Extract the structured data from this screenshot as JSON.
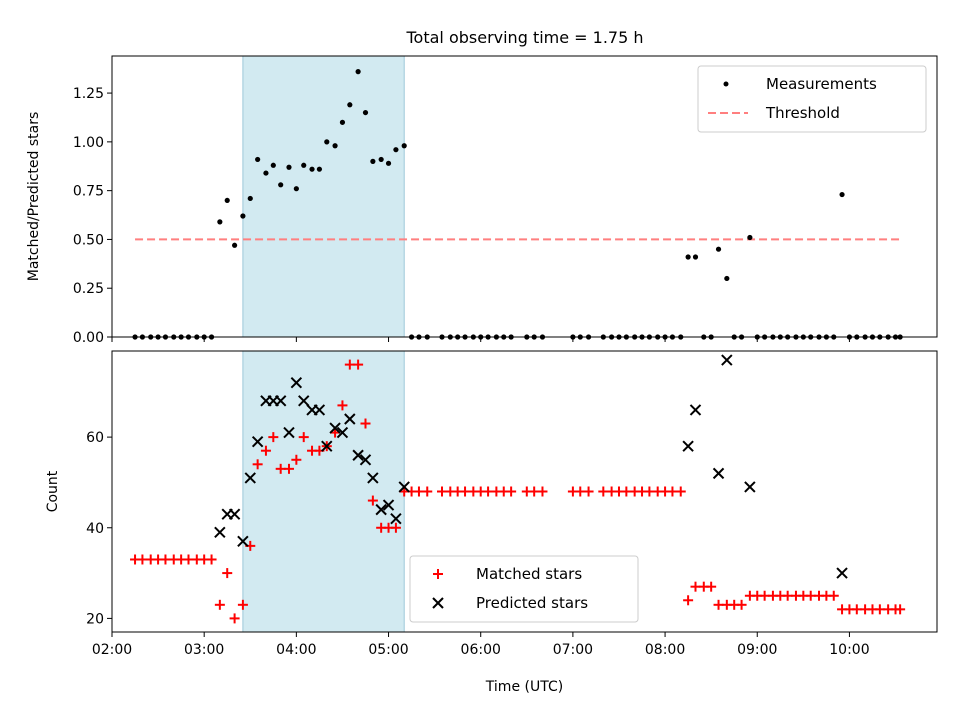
{
  "title": "Total observing time = 1.75 h",
  "chart_data": [
    {
      "type": "scatter",
      "ylabel": "Matched/Predicted stars",
      "xlim": [
        2.0,
        10.95
      ],
      "ylim": [
        0.0,
        1.44
      ],
      "yticks": [
        0.0,
        0.25,
        0.5,
        0.75,
        1.0,
        1.25
      ],
      "ytick_labels": [
        "0.00",
        "0.25",
        "0.50",
        "0.75",
        "1.00",
        "1.25"
      ],
      "shaded_interval": [
        3.42,
        5.17
      ],
      "shade_color": "#add8e6",
      "legend": {
        "position": "top-right",
        "entries": [
          "Measurements",
          "Threshold"
        ]
      },
      "threshold": {
        "name": "Threshold",
        "y": 0.5,
        "x": [
          2.25,
          10.55
        ],
        "color": "#ff7f7f",
        "style": "dashed"
      },
      "series": [
        {
          "name": "Measurements",
          "marker": "dot",
          "color": "#000000",
          "x": [
            2.25,
            2.33,
            2.42,
            2.5,
            2.58,
            2.67,
            2.75,
            2.83,
            2.92,
            3.0,
            3.08,
            3.17,
            3.25,
            3.33,
            3.42,
            3.5,
            3.58,
            3.67,
            3.75,
            3.83,
            3.92,
            4.0,
            4.08,
            4.17,
            4.25,
            4.33,
            4.42,
            4.5,
            4.58,
            4.67,
            4.75,
            4.83,
            4.92,
            5.0,
            5.08,
            5.17,
            5.25,
            5.33,
            5.42,
            5.58,
            5.67,
            5.75,
            5.83,
            5.92,
            6.0,
            6.08,
            6.17,
            6.25,
            6.33,
            6.5,
            6.58,
            6.67,
            7.0,
            7.08,
            7.17,
            7.33,
            7.42,
            7.5,
            7.58,
            7.67,
            7.75,
            7.83,
            7.92,
            8.0,
            8.08,
            8.17,
            8.25,
            8.33,
            8.42,
            8.5,
            8.58,
            8.67,
            8.75,
            8.83,
            8.92,
            9.0,
            9.08,
            9.17,
            9.25,
            9.33,
            9.42,
            9.5,
            9.58,
            9.67,
            9.75,
            9.83,
            9.92,
            10.0,
            10.08,
            10.17,
            10.25,
            10.33,
            10.42,
            10.5,
            10.55
          ],
          "y": [
            0,
            0,
            0,
            0,
            0,
            0,
            0,
            0,
            0,
            0,
            0,
            0.59,
            0.7,
            0.47,
            0.62,
            0.71,
            0.91,
            0.84,
            0.88,
            0.78,
            0.87,
            0.76,
            0.88,
            0.86,
            0.86,
            1.0,
            0.98,
            1.1,
            1.19,
            1.36,
            1.15,
            0.9,
            0.91,
            0.89,
            0.96,
            0.98,
            0,
            0,
            0,
            0,
            0,
            0,
            0,
            0,
            0,
            0,
            0,
            0,
            0,
            0,
            0,
            0,
            0,
            0,
            0,
            0,
            0,
            0,
            0,
            0,
            0,
            0,
            0,
            0,
            0,
            0,
            0.41,
            0.41,
            0,
            0,
            0.45,
            0.3,
            0,
            0,
            0.51,
            0,
            0,
            0,
            0,
            0,
            0,
            0,
            0,
            0,
            0,
            0,
            0.73,
            0,
            0,
            0,
            0,
            0,
            0,
            0,
            0
          ]
        }
      ]
    },
    {
      "type": "scatter",
      "xlabel": "Time (UTC)",
      "ylabel": "Count",
      "xlim": [
        2.0,
        10.95
      ],
      "ylim": [
        17,
        79
      ],
      "yticks": [
        20,
        40,
        60
      ],
      "ytick_labels": [
        "20",
        "40",
        "60"
      ],
      "xticks": [
        2,
        3,
        4,
        5,
        6,
        7,
        8,
        9,
        10
      ],
      "xtick_labels": [
        "02:00",
        "03:00",
        "04:00",
        "05:00",
        "06:00",
        "07:00",
        "08:00",
        "09:00",
        "10:00"
      ],
      "shaded_interval": [
        3.42,
        5.17
      ],
      "shade_color": "#add8e6",
      "legend": {
        "position": "lower-center",
        "entries": [
          "Matched stars",
          "Predicted stars"
        ]
      },
      "series": [
        {
          "name": "Matched stars",
          "marker": "plus",
          "color": "#ff0000",
          "x": [
            2.25,
            2.33,
            2.42,
            2.5,
            2.58,
            2.67,
            2.75,
            2.83,
            2.92,
            3.0,
            3.08,
            3.17,
            3.25,
            3.33,
            3.42,
            3.5,
            3.58,
            3.67,
            3.75,
            3.83,
            3.92,
            4.0,
            4.08,
            4.17,
            4.25,
            4.33,
            4.42,
            4.5,
            4.58,
            4.67,
            4.75,
            4.83,
            4.92,
            5.0,
            5.08,
            5.17,
            5.25,
            5.33,
            5.42,
            5.58,
            5.67,
            5.75,
            5.83,
            5.92,
            6.0,
            6.08,
            6.17,
            6.25,
            6.33,
            6.5,
            6.58,
            6.67,
            7.0,
            7.08,
            7.17,
            7.33,
            7.42,
            7.5,
            7.58,
            7.67,
            7.75,
            7.83,
            7.92,
            8.0,
            8.08,
            8.17,
            8.25,
            8.33,
            8.42,
            8.5,
            8.58,
            8.67,
            8.75,
            8.83,
            8.92,
            9.0,
            9.08,
            9.17,
            9.25,
            9.33,
            9.42,
            9.5,
            9.58,
            9.67,
            9.75,
            9.83,
            9.92,
            10.0,
            10.08,
            10.17,
            10.25,
            10.33,
            10.42,
            10.5,
            10.55
          ],
          "y": [
            33,
            33,
            33,
            33,
            33,
            33,
            33,
            33,
            33,
            33,
            33,
            23,
            30,
            20,
            23,
            36,
            54,
            57,
            60,
            53,
            53,
            55,
            60,
            57,
            57,
            58,
            61,
            67,
            76,
            76,
            63,
            46,
            40,
            40,
            40,
            48,
            48,
            48,
            48,
            48,
            48,
            48,
            48,
            48,
            48,
            48,
            48,
            48,
            48,
            48,
            48,
            48,
            48,
            48,
            48,
            48,
            48,
            48,
            48,
            48,
            48,
            48,
            48,
            48,
            48,
            48,
            24,
            27,
            27,
            27,
            23,
            23,
            23,
            23,
            25,
            25,
            25,
            25,
            25,
            25,
            25,
            25,
            25,
            25,
            25,
            25,
            22,
            22,
            22,
            22,
            22,
            22,
            22,
            22,
            22
          ]
        },
        {
          "name": "Predicted stars",
          "marker": "x",
          "color": "#000000",
          "x": [
            3.17,
            3.25,
            3.33,
            3.42,
            3.5,
            3.58,
            3.67,
            3.75,
            3.83,
            3.92,
            4.0,
            4.08,
            4.17,
            4.25,
            4.33,
            4.42,
            4.5,
            4.58,
            4.67,
            4.75,
            4.83,
            4.92,
            5.0,
            5.08,
            5.17,
            8.25,
            8.33,
            8.58,
            8.67,
            8.92,
            9.92
          ],
          "y": [
            39,
            43,
            43,
            37,
            51,
            59,
            68,
            68,
            68,
            61,
            72,
            68,
            66,
            66,
            58,
            62,
            61,
            64,
            56,
            55,
            51,
            44,
            45,
            42,
            49,
            58,
            66,
            52,
            77,
            49,
            30
          ]
        }
      ]
    }
  ]
}
